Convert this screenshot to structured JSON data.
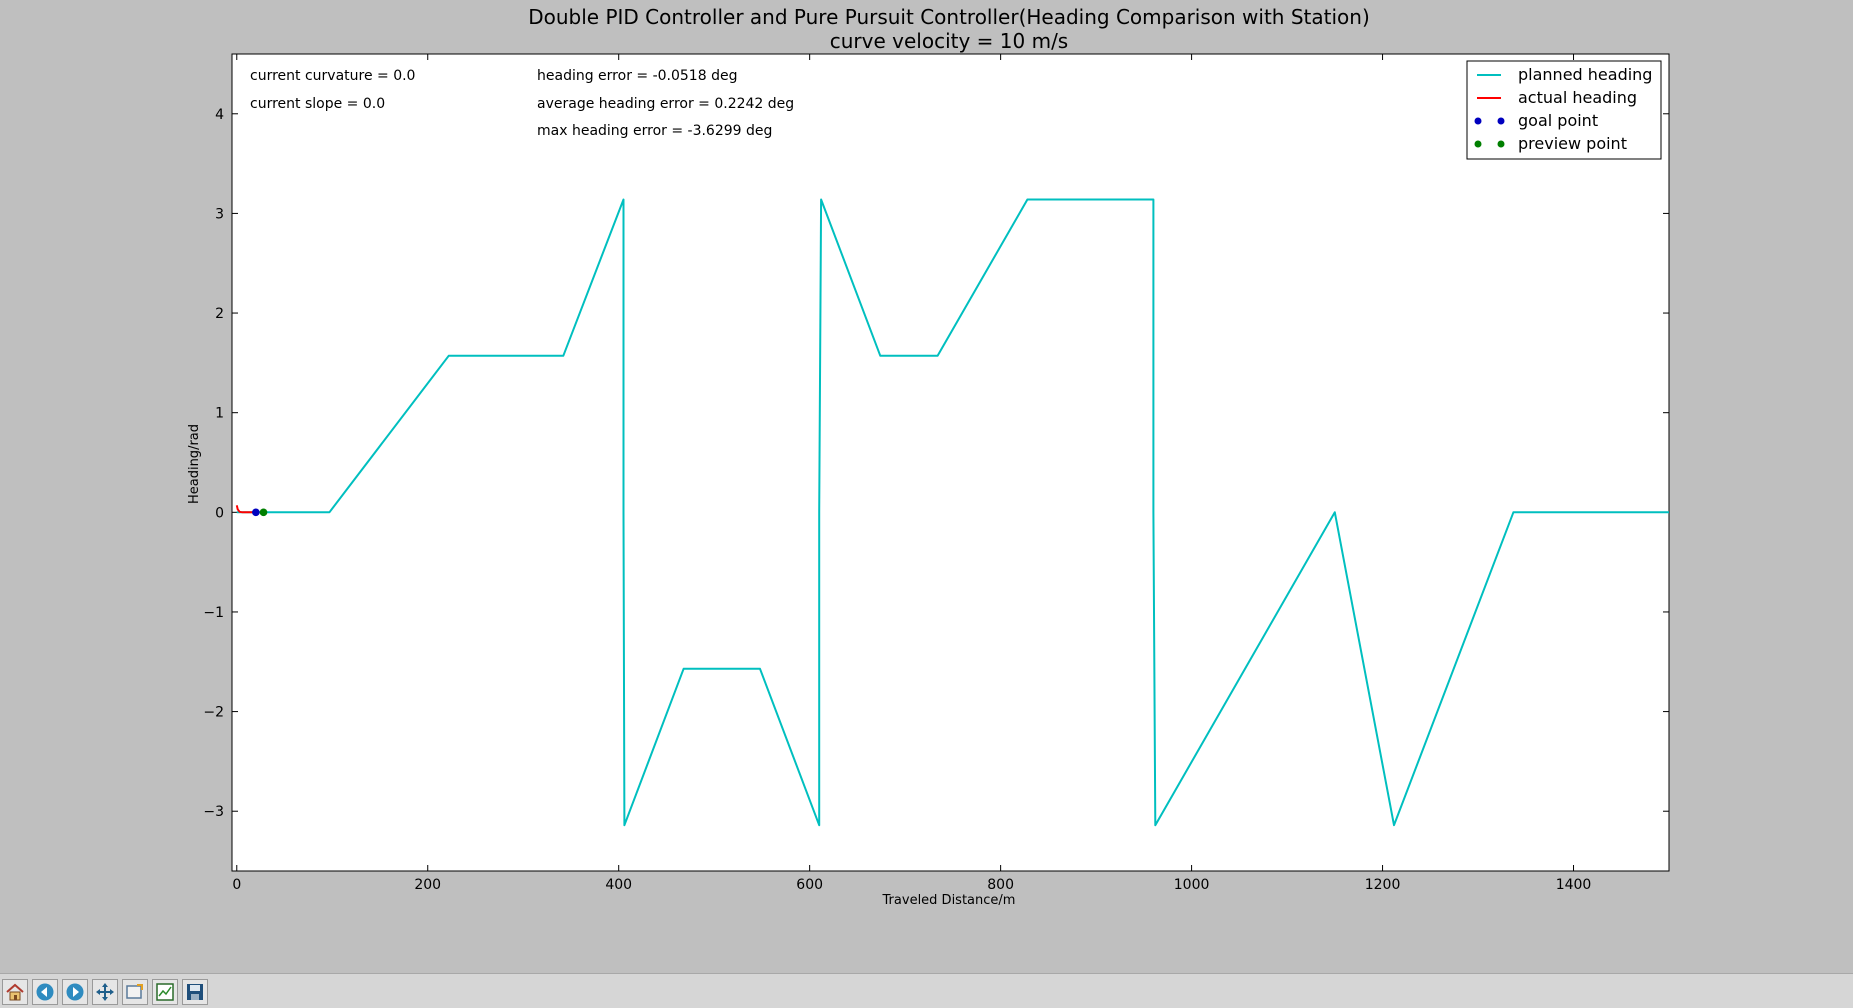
{
  "chart_data": {
    "type": "line",
    "title": "Double PID Controller and Pure Pursuit Controller(Heading Comparison with Station)",
    "subtitle": "curve velocity = 10 m/s",
    "xlabel": "Traveled Distance/m",
    "ylabel": "Heading/rad",
    "xlim": [
      -5,
      1500
    ],
    "ylim": [
      -3.6,
      4.6
    ],
    "xticks": [
      0,
      200,
      400,
      600,
      800,
      1000,
      1200,
      1400
    ],
    "yticks": [
      4,
      3,
      2,
      1,
      0,
      -1,
      -2,
      -3
    ],
    "ytick_labels": [
      "4",
      "3",
      "2",
      "1",
      "0",
      "−1",
      "−2",
      "−3"
    ],
    "grid": false,
    "legend_position": "top-right",
    "series": [
      {
        "name": "planned heading",
        "color": "#00bfbf",
        "x": [
          0,
          97,
          222,
          342,
          405,
          405,
          406,
          468,
          548,
          610,
          610,
          612,
          674,
          734,
          828,
          960,
          960,
          962,
          1150,
          1212,
          1337,
          1500
        ],
        "y": [
          0,
          0,
          1.571,
          1.571,
          3.14,
          0,
          -3.14,
          -1.571,
          -1.571,
          -3.14,
          0,
          3.14,
          1.571,
          1.571,
          3.14,
          3.14,
          0,
          -3.14,
          0,
          -3.14,
          0,
          0
        ]
      },
      {
        "name": "actual heading",
        "color": "#ff0000",
        "x": [
          0,
          1,
          3,
          6,
          10,
          20
        ],
        "y": [
          0.07,
          0.03,
          0.005,
          0,
          0,
          0
        ]
      },
      {
        "name": "goal point",
        "color": "#0000bf",
        "x": [
          20
        ],
        "y": [
          0
        ]
      },
      {
        "name": "preview point",
        "color": "#007f00",
        "x": [
          28
        ],
        "y": [
          0
        ]
      }
    ],
    "annotations": {
      "curvature": "current curvature = 0.0",
      "slope": "current slope = 0.0",
      "heading_error": "heading error = -0.0518 deg",
      "avg_heading_error": "average heading error = 0.2242 deg",
      "max_heading_error": "max heading error = -3.6299 deg"
    }
  },
  "toolbar": {
    "icons": [
      "home-icon",
      "back-icon",
      "forward-icon",
      "pan-icon",
      "zoom-icon",
      "subplots-icon",
      "save-icon"
    ]
  }
}
